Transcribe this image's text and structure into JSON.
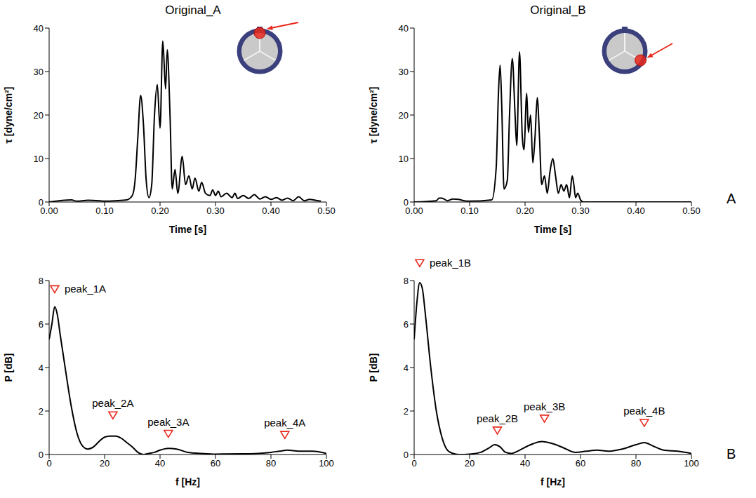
{
  "chart_data": [
    {
      "type": "line",
      "title": "Original_A",
      "xlabel": "Time [s]",
      "ylabel": "τ [dyne/cm²]",
      "color": "#000000",
      "grid": false,
      "x": [
        0,
        0.04,
        0.05,
        0.07,
        0.09,
        0.1,
        0.12,
        0.14,
        0.15,
        0.155,
        0.16,
        0.165,
        0.17,
        0.175,
        0.18,
        0.185,
        0.19,
        0.195,
        0.2,
        0.205,
        0.21,
        0.213,
        0.218,
        0.222,
        0.227,
        0.232,
        0.24,
        0.246,
        0.252,
        0.258,
        0.263,
        0.27,
        0.275,
        0.282,
        0.29,
        0.295,
        0.3,
        0.305,
        0.31,
        0.32,
        0.33,
        0.335,
        0.34,
        0.35,
        0.36,
        0.37,
        0.38,
        0.39,
        0.4,
        0.41,
        0.42,
        0.43,
        0.44,
        0.45,
        0.46,
        0.47,
        0.48,
        0.49
      ],
      "values": [
        0,
        0.5,
        0.2,
        0.4,
        0.3,
        0.2,
        0.3,
        0.5,
        1.5,
        5,
        15,
        24.5,
        18,
        5,
        1,
        4,
        20,
        27,
        17,
        37,
        26,
        35,
        20,
        3,
        7.5,
        2,
        10.5,
        4,
        6,
        3,
        5.5,
        2.5,
        4.5,
        2,
        1.5,
        2.8,
        1.5,
        2.5,
        1.2,
        2,
        1,
        2,
        0.8,
        1.5,
        0.8,
        1.7,
        0.7,
        1.2,
        0.6,
        1.0,
        0.4,
        0.9,
        0.3,
        1.2,
        0.3,
        0.6,
        0.4,
        0.2
      ],
      "xlim": [
        0,
        0.5
      ],
      "xticks": [
        {
          "value": 0,
          "label": "0.00"
        },
        {
          "value": 0.1,
          "label": "0.10"
        },
        {
          "value": 0.2,
          "label": "0.20"
        },
        {
          "value": 0.3,
          "label": "0.30"
        },
        {
          "value": 0.4,
          "label": "0.40"
        },
        {
          "value": 0.5,
          "label": "0.50"
        }
      ],
      "ylim": [
        0,
        40
      ],
      "yticks": [
        0,
        10,
        20,
        30,
        40
      ]
    },
    {
      "type": "line",
      "title": "Original_B",
      "xlabel": "Time [s]",
      "ylabel": "τ [dyne/cm²]",
      "color": "#000000",
      "grid": false,
      "x": [
        0,
        0.04,
        0.045,
        0.05,
        0.06,
        0.07,
        0.08,
        0.09,
        0.1,
        0.14,
        0.148,
        0.152,
        0.155,
        0.158,
        0.162,
        0.168,
        0.172,
        0.177,
        0.182,
        0.185,
        0.19,
        0.195,
        0.198,
        0.203,
        0.206,
        0.21,
        0.214,
        0.218,
        0.222,
        0.226,
        0.23,
        0.235,
        0.24,
        0.245,
        0.25,
        0.255,
        0.26,
        0.265,
        0.27,
        0.275,
        0.28,
        0.285,
        0.288,
        0.291,
        0.295,
        0.3,
        0.305,
        0.5
      ],
      "values": [
        0,
        0.3,
        0.9,
        0.9,
        0.3,
        0.7,
        0.6,
        0.3,
        0.2,
        0.5,
        8,
        25,
        31.5,
        22,
        3,
        5,
        20,
        33,
        20,
        13,
        34.5,
        15,
        12,
        25,
        16,
        20,
        9,
        15,
        24,
        15,
        4,
        6,
        2,
        7,
        10,
        6,
        2,
        4,
        2.5,
        4,
        1,
        6,
        4,
        1,
        2,
        0.5,
        0,
        0
      ],
      "xlim": [
        0,
        0.5
      ],
      "xticks": [
        {
          "value": 0,
          "label": "0.00"
        },
        {
          "value": 0.1,
          "label": "0.10"
        },
        {
          "value": 0.2,
          "label": "0.20"
        },
        {
          "value": 0.3,
          "label": "0.30"
        },
        {
          "value": 0.4,
          "label": "0.40"
        },
        {
          "value": 0.5,
          "label": "0.50"
        }
      ],
      "ylim": [
        0,
        40
      ],
      "yticks": [
        0,
        10,
        20,
        30,
        40
      ]
    },
    {
      "type": "line",
      "xlabel": "f [Hz]",
      "ylabel": "P [dB]",
      "color": "#000000",
      "grid": false,
      "x": [
        0,
        1,
        2,
        3,
        4,
        6,
        8,
        10,
        12,
        14,
        16,
        18,
        20,
        22,
        24,
        26,
        28,
        30,
        32,
        34,
        36,
        38,
        40,
        43,
        46,
        50,
        55,
        60,
        70,
        80,
        83,
        86,
        90,
        95,
        100
      ],
      "values": [
        5.3,
        6,
        6.8,
        6.4,
        5.5,
        3.8,
        2.2,
        1.0,
        0.4,
        0.25,
        0.35,
        0.6,
        0.8,
        0.85,
        0.85,
        0.75,
        0.55,
        0.35,
        0.1,
        0,
        0.05,
        0.1,
        0.2,
        0.28,
        0.25,
        0.1,
        0.05,
        0.02,
        0.03,
        0.1,
        0.15,
        0.2,
        0.15,
        0.15,
        0.05
      ],
      "xlim": [
        0,
        100
      ],
      "xticks": [
        0,
        20,
        40,
        60,
        80,
        100
      ],
      "ylim": [
        0,
        8
      ],
      "yticks": [
        0,
        2,
        4,
        6,
        8
      ],
      "annotations": [
        {
          "text": "peak_1A",
          "x": 2,
          "y": 7.6
        },
        {
          "text": "peak_2A",
          "x": 23,
          "y": 1.8
        },
        {
          "text": "peak_3A",
          "x": 43,
          "y": 0.95
        },
        {
          "text": "peak_4A",
          "x": 85,
          "y": 0.9
        }
      ]
    },
    {
      "type": "line",
      "xlabel": "f [Hz]",
      "ylabel": "P [dB]",
      "color": "#000000",
      "grid": false,
      "x": [
        0,
        1,
        2,
        3,
        4,
        6,
        8,
        10,
        12,
        14,
        16,
        20,
        24,
        27,
        29,
        31,
        33,
        35,
        38,
        42,
        46,
        50,
        54,
        58,
        62,
        66,
        70,
        75,
        80,
        83,
        86,
        90,
        95,
        100
      ],
      "values": [
        5.3,
        7,
        7.9,
        7.6,
        6.5,
        4,
        2,
        0.8,
        0.2,
        0.05,
        0,
        0.02,
        0.1,
        0.3,
        0.45,
        0.35,
        0.1,
        0.05,
        0.2,
        0.45,
        0.6,
        0.5,
        0.3,
        0.1,
        0.15,
        0.2,
        0.15,
        0.25,
        0.45,
        0.55,
        0.4,
        0.2,
        0.15,
        0.05
      ],
      "xlim": [
        0,
        100
      ],
      "xticks": [
        0,
        20,
        40,
        60,
        80,
        100
      ],
      "ylim": [
        0,
        8
      ],
      "yticks": [
        0,
        2,
        4,
        6,
        8
      ],
      "annotations": [
        {
          "text": "peak_1B",
          "x": 2,
          "y": 8.8
        },
        {
          "text": "peak_2B",
          "x": 30,
          "y": 1.1
        },
        {
          "text": "peak_3B",
          "x": 47,
          "y": 1.65
        },
        {
          "text": "peak_4B",
          "x": 83,
          "y": 1.45
        }
      ]
    }
  ],
  "panel_labels": [
    "A",
    "B"
  ]
}
